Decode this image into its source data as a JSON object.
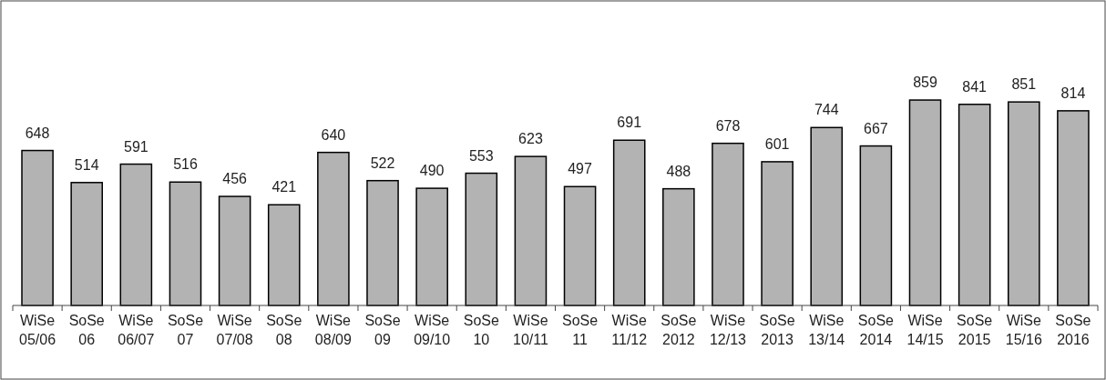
{
  "chart_data": {
    "type": "bar",
    "categories": [
      "WiSe 05/06",
      "SoSe 06",
      "WiSe 06/07",
      "SoSe 07",
      "WiSe 07/08",
      "SoSe 08",
      "WiSe 08/09",
      "SoSe 09",
      "WiSe 09/10",
      "SoSe 10",
      "WiSe 10/11",
      "SoSe 11",
      "WiSe 11/12",
      "SoSe 2012",
      "WiSe 12/13",
      "SoSe 2013",
      "WiSe 13/14",
      "SoSe 2014",
      "WiSe 14/15",
      "SoSe 2015",
      "WiSe 15/16",
      "SoSe 2016"
    ],
    "values": [
      648,
      514,
      591,
      516,
      456,
      421,
      640,
      522,
      490,
      553,
      623,
      497,
      691,
      488,
      678,
      601,
      744,
      667,
      859,
      841,
      851,
      814
    ],
    "color": "#b3b3b3",
    "data_labels": true
  }
}
